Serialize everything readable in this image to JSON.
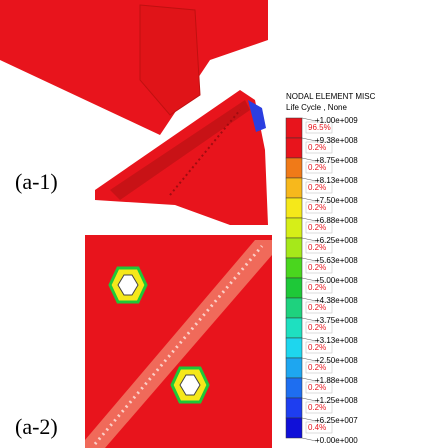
{
  "panels": [
    {
      "label": "(a-1)"
    },
    {
      "label": "(a-2)"
    }
  ],
  "legend": {
    "title": "NODAL ELEMENT MISC",
    "subtitle": "Life Cycle , None",
    "bins": [
      {
        "percent": "96.5%",
        "color": "#e8141c"
      },
      {
        "percent": "0.2%",
        "color": "#e8141c"
      },
      {
        "percent": "0.2%",
        "color": "#f07a18"
      },
      {
        "percent": "0.2%",
        "color": "#f7b81c"
      },
      {
        "percent": "0.2%",
        "color": "#f5e81a"
      },
      {
        "percent": "0.2%",
        "color": "#d6ee18"
      },
      {
        "percent": "0.2%",
        "color": "#a6e81a"
      },
      {
        "percent": "0.2%",
        "color": "#4ad61e"
      },
      {
        "percent": "0.2%",
        "color": "#1ec838"
      },
      {
        "percent": "0.2%",
        "color": "#1ed27e"
      },
      {
        "percent": "0.2%",
        "color": "#1ee0c0"
      },
      {
        "percent": "0.2%",
        "color": "#1ed6ee"
      },
      {
        "percent": "0.2%",
        "color": "#1ea6f0"
      },
      {
        "percent": "0.2%",
        "color": "#1e6ef0"
      },
      {
        "percent": "0.2%",
        "color": "#1e3ef0"
      },
      {
        "percent": "0.4%",
        "color": "#1010d8"
      }
    ],
    "ticks": [
      "+1.00e+009",
      "+9.38e+008",
      "+8.75e+008",
      "+8.13e+008",
      "+7.50e+008",
      "+6.88e+008",
      "+6.25e+008",
      "+5.63e+008",
      "+5.00e+008",
      "+4.38e+008",
      "+3.75e+008",
      "+3.13e+008",
      "+2.50e+008",
      "+1.88e+008",
      "+1.25e+008",
      "+6.25e+007",
      "+0.00e+000"
    ]
  }
}
